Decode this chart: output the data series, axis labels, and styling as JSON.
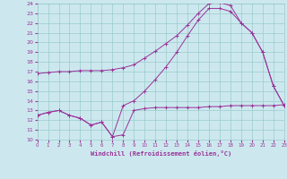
{
  "xlabel": "Windchill (Refroidissement éolien,°C)",
  "bg_color": "#cce8ee",
  "grid_color": "#99cccc",
  "line_color": "#993399",
  "xlim": [
    0,
    23
  ],
  "ylim": [
    10,
    24
  ],
  "xticks": [
    0,
    1,
    2,
    3,
    4,
    5,
    6,
    7,
    8,
    9,
    10,
    11,
    12,
    13,
    14,
    15,
    16,
    17,
    18,
    19,
    20,
    21,
    22,
    23
  ],
  "yticks": [
    10,
    11,
    12,
    13,
    14,
    15,
    16,
    17,
    18,
    19,
    20,
    21,
    22,
    23,
    24
  ],
  "series1_x": [
    0,
    1,
    2,
    3,
    4,
    5,
    6,
    7,
    8,
    9,
    10,
    11,
    12,
    13,
    14,
    15,
    16,
    17,
    18,
    19,
    20,
    21,
    22,
    23
  ],
  "series1_y": [
    16.8,
    16.9,
    17.0,
    17.0,
    17.1,
    17.1,
    17.1,
    17.2,
    17.4,
    17.7,
    18.4,
    19.1,
    19.9,
    20.7,
    21.8,
    23.0,
    24.0,
    24.1,
    23.8,
    22.0,
    21.0,
    19.0,
    15.5,
    13.5
  ],
  "series2_x": [
    0,
    1,
    2,
    3,
    4,
    5,
    6,
    7,
    8,
    9,
    10,
    11,
    12,
    13,
    14,
    15,
    16,
    17,
    18,
    19,
    20,
    21,
    22,
    23
  ],
  "series2_y": [
    12.5,
    12.8,
    13.0,
    12.5,
    12.2,
    11.5,
    11.8,
    10.3,
    10.5,
    13.0,
    13.2,
    13.3,
    13.3,
    13.3,
    13.3,
    13.3,
    13.4,
    13.4,
    13.5,
    13.5,
    13.5,
    13.5,
    13.5,
    13.6
  ],
  "series3_x": [
    0,
    1,
    2,
    3,
    4,
    5,
    6,
    7,
    8,
    9,
    10,
    11,
    12,
    13,
    14,
    15,
    16,
    17,
    18,
    19,
    20,
    21,
    22,
    23
  ],
  "series3_y": [
    12.5,
    12.8,
    13.0,
    12.5,
    12.2,
    11.5,
    11.8,
    10.3,
    13.5,
    14.0,
    15.0,
    16.2,
    17.5,
    19.0,
    20.7,
    22.3,
    23.5,
    23.5,
    23.2,
    22.0,
    21.0,
    19.0,
    15.5,
    13.5
  ]
}
